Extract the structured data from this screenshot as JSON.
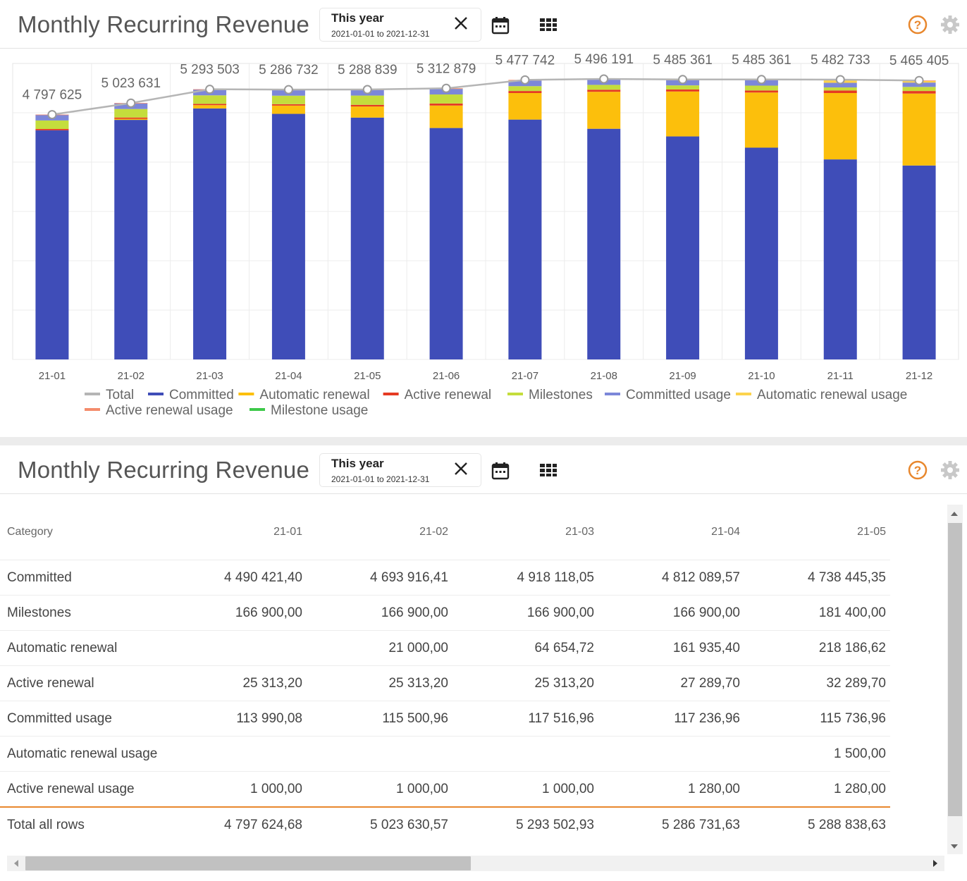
{
  "chart_panel": {
    "title": "Monthly Recurring Revenue",
    "period_label": "This year",
    "period_range": "2021-01-01 to 2021-12-31"
  },
  "table_panel": {
    "title": "Monthly Recurring Revenue",
    "period_label": "This year",
    "period_range": "2021-01-01 to 2021-12-31"
  },
  "icons": {
    "clear": "close-icon",
    "calendar": "calendar-icon",
    "view_grid": "grid-icon",
    "help": "help-icon",
    "settings": "gear-icon"
  },
  "colors": {
    "accent_orange": "#e8872d",
    "help": "#e8872d",
    "gear": "#c8c8c8"
  },
  "chart_data": {
    "type": "bar",
    "stacked": true,
    "categories": [
      "21-01",
      "21-02",
      "21-03",
      "21-04",
      "21-05",
      "21-06",
      "21-07",
      "21-08",
      "21-09",
      "21-10",
      "21-11",
      "21-12"
    ],
    "ylim": [
      0,
      5800000
    ],
    "grid": true,
    "legend_position": "bottom",
    "series": [
      {
        "name": "Committed",
        "color": "#3f4db8",
        "values": [
          4490421,
          4693916,
          4918118,
          4812090,
          4738445,
          4535000,
          4700000,
          4520000,
          4370000,
          4150000,
          3920000,
          3800000
        ]
      },
      {
        "name": "Automatic renewal",
        "color": "#fcbf0c",
        "values": [
          0,
          21000,
          64655,
          161935,
          218187,
          440000,
          520000,
          725000,
          880000,
          1080000,
          1300000,
          1410000
        ]
      },
      {
        "name": "Active renewal",
        "color": "#e53a22",
        "values": [
          25313,
          25313,
          25313,
          27290,
          32290,
          40000,
          40000,
          40000,
          40000,
          40000,
          50000,
          50000
        ]
      },
      {
        "name": "Milestones",
        "color": "#c4dd3c",
        "values": [
          166900,
          166900,
          166900,
          166900,
          181400,
          177000,
          95000,
          95000,
          80000,
          95000,
          60000,
          80000
        ]
      },
      {
        "name": "Committed usage",
        "color": "#7c87d9",
        "values": [
          113990,
          115501,
          117517,
          117237,
          115737,
          118000,
          110000,
          105000,
          103000,
          105000,
          90000,
          85000
        ]
      },
      {
        "name": "Automatic renewal usage",
        "color": "#fcd34d",
        "values": [
          0,
          0,
          0,
          0,
          1500,
          1500,
          10000,
          9000,
          9000,
          12000,
          60000,
          38000
        ]
      },
      {
        "name": "Active renewal usage",
        "color": "#f48c6c",
        "values": [
          1000,
          1000,
          1000,
          1280,
          1280,
          1379,
          2742,
          2191,
          3361,
          3361,
          2733,
          2405
        ]
      },
      {
        "name": "Milestone usage",
        "color": "#3ec94a",
        "values": [
          0,
          0,
          0,
          0,
          0,
          0,
          0,
          0,
          0,
          0,
          0,
          0
        ]
      }
    ],
    "line": {
      "name": "Total",
      "color": "#b5b5b5",
      "values": [
        4797625,
        5023631,
        5293503,
        5286732,
        5288839,
        5312879,
        5477742,
        5496191,
        5485361,
        5485361,
        5482733,
        5465405
      ],
      "labels": [
        "4 797 625",
        "5 023 631",
        "5 293 503",
        "5 286 732",
        "5 288 839",
        "5 312 879",
        "5 477 742",
        "5 496 191",
        "5 485 361",
        "5 485 361",
        "5 482 733",
        "5 465 405"
      ]
    },
    "legend": [
      {
        "name": "Total",
        "color": "#b5b5b5"
      },
      {
        "name": "Committed",
        "color": "#3f4db8"
      },
      {
        "name": "Automatic renewal",
        "color": "#fcbf0c"
      },
      {
        "name": "Active renewal",
        "color": "#e53a22"
      },
      {
        "name": "Milestones",
        "color": "#c4dd3c"
      },
      {
        "name": "Committed usage",
        "color": "#7c87d9"
      },
      {
        "name": "Automatic renewal usage",
        "color": "#fcd34d"
      },
      {
        "name": "Active renewal usage",
        "color": "#f48c6c"
      },
      {
        "name": "Milestone usage",
        "color": "#3ec94a"
      }
    ]
  },
  "table": {
    "header": [
      "Category",
      "21-01",
      "21-02",
      "21-03",
      "21-04",
      "21-05"
    ],
    "rows": [
      [
        "Committed",
        "4 490 421,40",
        "4 693 916,41",
        "4 918 118,05",
        "4 812 089,57",
        "4 738 445,35"
      ],
      [
        "Milestones",
        "166 900,00",
        "166 900,00",
        "166 900,00",
        "166 900,00",
        "181 400,00"
      ],
      [
        "Automatic renewal",
        "",
        "21 000,00",
        "64 654,72",
        "161 935,40",
        "218 186,62"
      ],
      [
        "Active renewal",
        "25 313,20",
        "25 313,20",
        "25 313,20",
        "27 289,70",
        "32 289,70"
      ],
      [
        "Committed usage",
        "113 990,08",
        "115 500,96",
        "117 516,96",
        "117 236,96",
        "115 736,96"
      ],
      [
        "Automatic renewal usage",
        "",
        "",
        "",
        "",
        "1 500,00"
      ],
      [
        "Active renewal usage",
        "1 000,00",
        "1 000,00",
        "1 000,00",
        "1 280,00",
        "1 280,00"
      ]
    ],
    "total": [
      "Total all rows",
      "4 797 624,68",
      "5 023 630,57",
      "5 293 502,93",
      "5 286 731,63",
      "5 288 838,63"
    ]
  }
}
